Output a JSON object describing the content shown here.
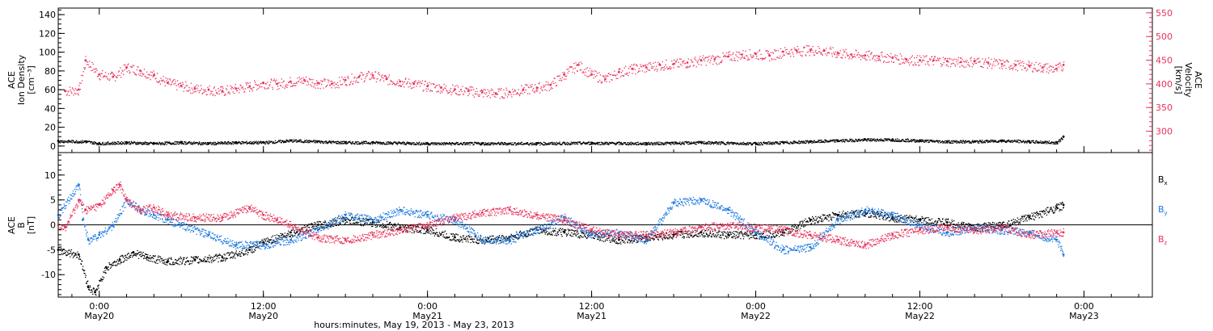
{
  "chart_data": [
    {
      "type": "scatter",
      "title": "",
      "xlabel": "hours:minutes, May 19, 2013 - May 23, 2013",
      "x_ticks": [
        {
          "time": "0:00",
          "date": "May20",
          "hour": 0
        },
        {
          "time": "12:00",
          "date": "May20",
          "hour": 12
        },
        {
          "time": "0:00",
          "date": "May21",
          "hour": 24
        },
        {
          "time": "12:00",
          "date": "May21",
          "hour": 36
        },
        {
          "time": "0:00",
          "date": "May22",
          "hour": 48
        },
        {
          "time": "12:00",
          "date": "May22",
          "hour": 60
        },
        {
          "time": "0:00",
          "date": "May23",
          "hour": 72
        }
      ],
      "xlim_hours_from_May20": [
        -3,
        77
      ],
      "ylabel_left": [
        "ACE",
        "Ion Density",
        "[cm⁻³]"
      ],
      "ylabel_right": [
        "ACE",
        "Velocity",
        "[km/s]"
      ],
      "ylim_left": [
        -7,
        147
      ],
      "ylim_right": [
        255,
        560
      ],
      "yticks_left": [
        0,
        20,
        40,
        60,
        80,
        100,
        120,
        140
      ],
      "yticks_right": [
        300,
        350,
        400,
        450,
        500,
        550
      ],
      "series": [
        {
          "axis": "right",
          "color": "#e8325a",
          "x_hours_from_May20": [
            -2.5,
            -1.5,
            -1.0,
            0,
            1,
            2,
            3,
            4,
            5,
            6,
            7,
            8,
            9,
            10,
            11,
            12,
            13,
            14,
            15,
            16,
            17,
            18,
            19,
            20,
            21,
            22,
            23,
            24,
            25,
            26,
            27,
            28,
            29,
            30,
            31,
            32,
            33,
            34,
            35,
            36,
            37,
            38,
            39,
            40,
            41,
            42,
            43,
            44,
            45,
            46,
            47,
            48,
            49,
            50,
            51,
            52,
            53,
            54,
            55,
            56,
            57,
            58,
            59,
            60,
            61,
            62,
            63,
            64,
            65,
            66,
            67,
            68,
            69,
            70,
            70.5
          ],
          "values": [
            385,
            388,
            450,
            420,
            415,
            435,
            428,
            418,
            402,
            396,
            390,
            388,
            385,
            390,
            395,
            402,
            400,
            405,
            408,
            402,
            400,
            408,
            415,
            418,
            410,
            405,
            400,
            395,
            392,
            388,
            385,
            382,
            380,
            383,
            388,
            392,
            398,
            420,
            440,
            420,
            410,
            425,
            432,
            435,
            440,
            442,
            445,
            450,
            452,
            458,
            462,
            463,
            460,
            468,
            470,
            472,
            470,
            465,
            462,
            460,
            458,
            455,
            452,
            450,
            450,
            448,
            446,
            448,
            445,
            442,
            440,
            438,
            435,
            432,
            440
          ]
        },
        {
          "axis": "left",
          "color": "#000000",
          "x_hours_from_May20": [
            -3,
            -1,
            0,
            2,
            4,
            6,
            8,
            10,
            12,
            14,
            16,
            18,
            20,
            24,
            28,
            32,
            36,
            40,
            44,
            48,
            50,
            52,
            54,
            56,
            58,
            60,
            62,
            64,
            66,
            68,
            70,
            70.5
          ],
          "values": [
            5.5,
            5,
            3,
            4,
            3,
            4,
            3,
            4,
            4,
            6,
            5,
            4,
            4,
            3,
            3,
            3,
            3.5,
            3,
            4,
            3,
            4,
            5,
            6,
            7,
            7,
            6,
            5,
            5,
            6,
            5,
            4,
            10
          ]
        }
      ]
    },
    {
      "type": "scatter",
      "title": "",
      "xlabel": "",
      "ylabel": [
        "ACE",
        "B",
        "[nT]"
      ],
      "ylim": [
        -14.5,
        14.5
      ],
      "yticks": [
        -10,
        -5,
        0,
        5,
        10
      ],
      "legend_position": "right",
      "series": [
        {
          "name": "Bx",
          "name_main": "B",
          "name_sub": "x",
          "color": "#000000",
          "x_hours_from_May20": [
            -3,
            -1.5,
            -0.8,
            -0.3,
            0.5,
            1.5,
            2.5,
            3.5,
            5,
            7,
            9,
            11,
            12,
            14,
            16,
            18,
            20,
            22,
            24,
            26,
            28,
            30,
            32,
            34,
            36,
            38,
            40,
            42,
            44,
            46,
            48,
            50,
            52,
            54,
            56,
            58,
            60,
            62,
            64,
            66,
            68,
            70,
            70.5
          ],
          "values": [
            -5,
            -6,
            -12.5,
            -13.5,
            -8.5,
            -7,
            -5.5,
            -6.5,
            -7.3,
            -7,
            -6.5,
            -5,
            -3.5,
            -1.5,
            0,
            1,
            0.5,
            -0.5,
            -1,
            -2.5,
            -3,
            -2.5,
            -1,
            -1.5,
            -2,
            -3,
            -2.5,
            -2,
            -1.5,
            -2,
            -2,
            -1.5,
            1,
            2,
            2.5,
            1.5,
            1,
            0.5,
            -0.5,
            0,
            1.5,
            3.5,
            4
          ]
        },
        {
          "name": "By",
          "name_main": "B",
          "name_sub": "y",
          "color": "#1a78e0",
          "x_hours_from_May20": [
            -3,
            -1.5,
            -1.2,
            -0.8,
            0,
            1,
            2,
            3,
            4,
            5,
            6,
            8,
            10,
            12,
            14,
            16,
            18,
            20,
            22,
            24,
            26,
            28,
            30,
            32,
            34,
            36,
            38,
            40,
            42,
            44,
            46,
            48,
            50,
            52,
            54,
            56,
            58,
            60,
            62,
            64,
            66,
            68,
            70,
            70.5
          ],
          "values": [
            2,
            8,
            1,
            -3,
            -2,
            0,
            5,
            3,
            2,
            1,
            0,
            -2,
            -4,
            -4,
            -3,
            -1,
            2,
            1,
            3,
            2,
            1,
            -3,
            -3,
            -1,
            1.5,
            -2,
            -1.5,
            -3,
            4.5,
            5,
            3,
            -1.5,
            -5,
            -4.5,
            1,
            3,
            2,
            0,
            -1.5,
            -0.5,
            -1,
            -1.5,
            -3,
            -6
          ]
        },
        {
          "name": "Bz",
          "name_main": "B",
          "name_sub": "z",
          "color": "#e8325a",
          "x_hours_from_May20": [
            -3,
            -2.5,
            -1.5,
            -1,
            0,
            1,
            1.5,
            2,
            3,
            4,
            5,
            7,
            9,
            11,
            12,
            13,
            14,
            16,
            18,
            20,
            22,
            24,
            26,
            28,
            30,
            32,
            34,
            36,
            38,
            40,
            42,
            44,
            46,
            48,
            50,
            52,
            54,
            56,
            58,
            60,
            62,
            64,
            66,
            68,
            70,
            70.5
          ],
          "values": [
            0,
            -0.5,
            5,
            3,
            4,
            7,
            8,
            5,
            3,
            3.5,
            2,
            1.5,
            1.5,
            3.5,
            2,
            1,
            0,
            -2.5,
            -3,
            -2,
            -1,
            0,
            1.5,
            2.5,
            3,
            2,
            1,
            -1,
            -2,
            -2,
            -1.5,
            -0.5,
            0,
            -0.5,
            -1,
            -2,
            -3,
            -4,
            -2,
            -1,
            -0.5,
            -1,
            -0.5,
            -2,
            -1.5,
            -1.5
          ]
        }
      ]
    }
  ]
}
